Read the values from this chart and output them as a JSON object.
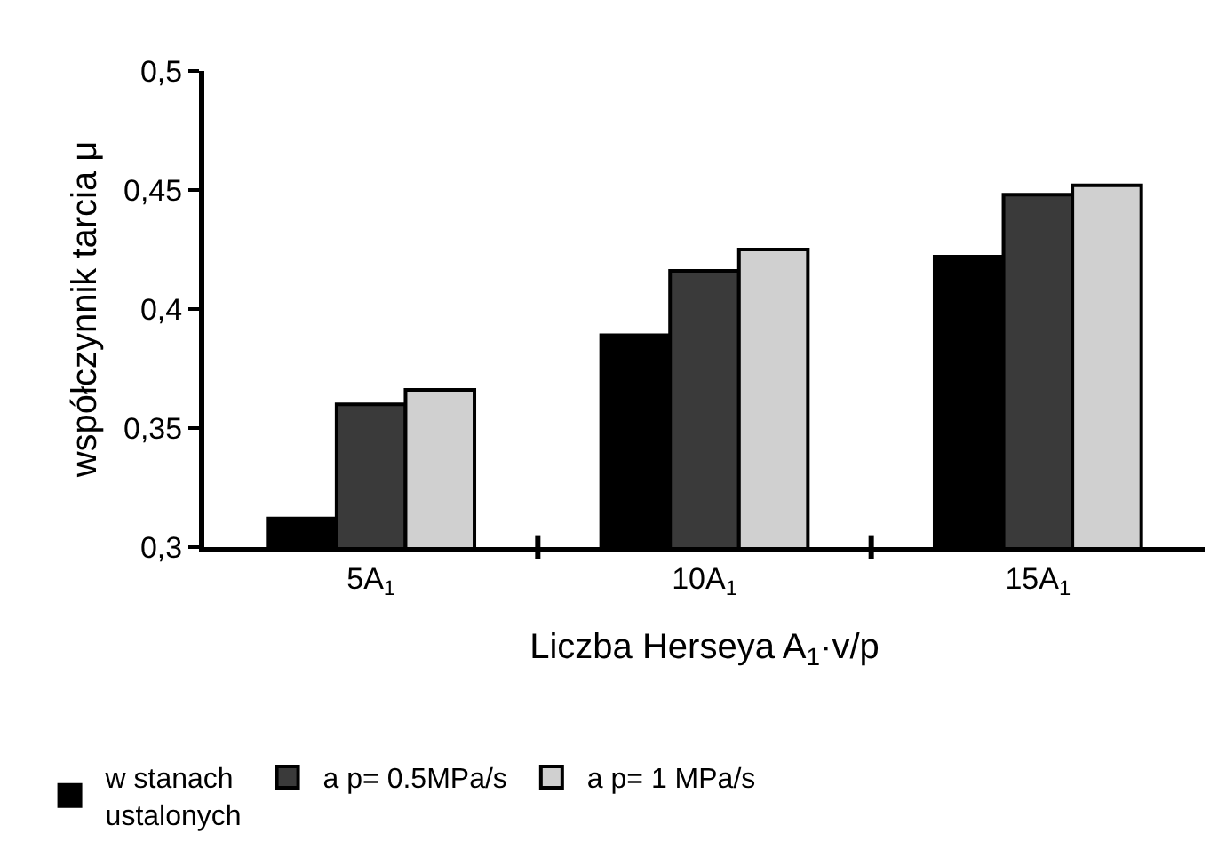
{
  "chart_data": {
    "type": "bar",
    "categories": [
      "5A$_{1}$",
      "10A$_{1}$",
      "15A$_{1}$"
    ],
    "xlabel": "Liczba Herseya A$_{1}$·v/p",
    "ylabel": "współczynnik tarcia μ",
    "series": [
      {
        "name": "w stanach\nustalonych",
        "color": "#000000",
        "values": [
          0.312,
          0.389,
          0.422
        ]
      },
      {
        "name": "a p= 0.5MPa/s",
        "color": "#3a3a3a",
        "values": [
          0.36,
          0.416,
          0.448
        ]
      },
      {
        "name": "a p= 1 MPa/s",
        "color": "#d0d0d0",
        "values": [
          0.366,
          0.425,
          0.452
        ]
      }
    ],
    "ylim": [
      0.3,
      0.5
    ],
    "yticks": [
      {
        "value": 0.3,
        "label": "0,3"
      },
      {
        "value": 0.35,
        "label": "0,35"
      },
      {
        "value": 0.4,
        "label": "0,4"
      },
      {
        "value": 0.45,
        "label": "0,45"
      },
      {
        "value": 0.5,
        "label": "0,5"
      }
    ],
    "legend": "bottom"
  }
}
